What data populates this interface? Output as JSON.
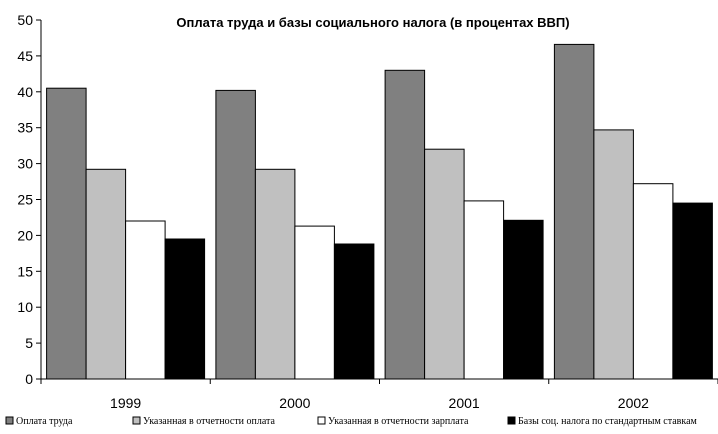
{
  "chart_data": {
    "type": "bar",
    "title": "Оплата труда и базы социального налога (в процентах ВВП)",
    "xlabel": "",
    "ylabel": "",
    "ylim": [
      0,
      50
    ],
    "yticks": [
      0,
      5,
      10,
      15,
      20,
      25,
      30,
      35,
      40,
      45,
      50
    ],
    "categories": [
      "1999",
      "2000",
      "2001",
      "2002"
    ],
    "grid": false,
    "legend_position": "bottom",
    "series": [
      {
        "name": "Оплата труда",
        "color": "#808080",
        "values": [
          40.5,
          40.2,
          43.0,
          46.6
        ]
      },
      {
        "name": "Указанная в отчетности оплата",
        "color": "#c0c0c0",
        "values": [
          29.2,
          29.2,
          32.0,
          34.7
        ]
      },
      {
        "name": "Указанная в отчетности зарплата",
        "color": "#ffffff",
        "values": [
          22.0,
          21.3,
          24.8,
          27.2
        ]
      },
      {
        "name": "Базы соц. налога по стандартным ставкам",
        "color": "#000000",
        "values": [
          19.5,
          18.8,
          22.1,
          24.5
        ]
      }
    ]
  }
}
